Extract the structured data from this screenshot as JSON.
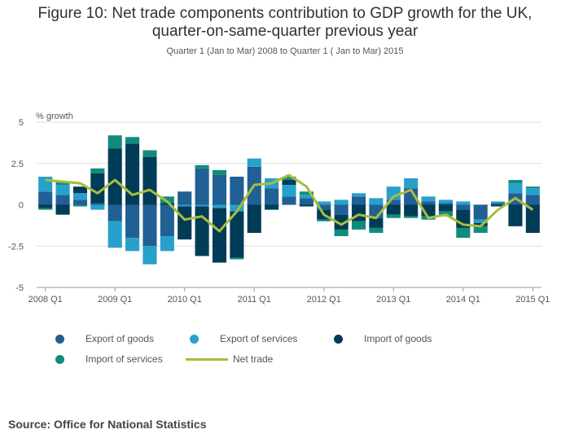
{
  "title_line1": "Figure 10: Net trade components contribution to GDP growth for the UK,",
  "title_line2": "quarter-on-same-quarter previous year",
  "subtitle": "Quarter 1 (Jan to Mar) 2008 to Quarter 1 ( Jan to Mar) 2015",
  "source": "Source: Office for National Statistics",
  "legend": [
    {
      "label": "Export of goods",
      "color": "#206095",
      "shape": "dot"
    },
    {
      "label": "Export of services",
      "color": "#27a0cc",
      "shape": "dot"
    },
    {
      "label": "Import of goods",
      "color": "#003c57",
      "shape": "dot"
    },
    {
      "label": "Import of services",
      "color": "#118c7b",
      "shape": "dot"
    },
    {
      "label": "Net trade",
      "color": "#a8bd3a",
      "shape": "line"
    }
  ],
  "chart_data": {
    "type": "bar",
    "stacked": true,
    "ylabel": "% growth",
    "ylim": [
      -5,
      5
    ],
    "yticks": [
      5,
      2.5,
      0,
      -2.5,
      -5
    ],
    "ytick_labels": [
      "5",
      "2.5",
      "0",
      "-2.5",
      "-5"
    ],
    "xtick_labels": [
      "2008 Q1",
      "2009 Q1",
      "2010 Q1",
      "2011 Q1",
      "2012 Q1",
      "2013 Q1",
      "2014 Q1",
      "2015 Q1"
    ],
    "categories": [
      "2008 Q1",
      "2008 Q2",
      "2008 Q3",
      "2008 Q4",
      "2009 Q1",
      "2009 Q2",
      "2009 Q3",
      "2009 Q4",
      "2010 Q1",
      "2010 Q2",
      "2010 Q3",
      "2010 Q4",
      "2011 Q1",
      "2011 Q2",
      "2011 Q3",
      "2011 Q4",
      "2012 Q1",
      "2012 Q2",
      "2012 Q3",
      "2012 Q4",
      "2013 Q1",
      "2013 Q2",
      "2013 Q3",
      "2013 Q4",
      "2014 Q1",
      "2014 Q2",
      "2014 Q3",
      "2014 Q4",
      "2015 Q1"
    ],
    "grid": true,
    "series": [
      {
        "name": "Export of goods",
        "color": "#206095",
        "values": [
          0.8,
          0.6,
          0.3,
          0.1,
          -1.0,
          -2.0,
          -2.5,
          -1.9,
          0.8,
          2.2,
          1.8,
          1.7,
          2.3,
          1.0,
          0.5,
          0.4,
          -0.3,
          -0.6,
          0.5,
          -0.8,
          0.3,
          1.0,
          0.2,
          0.1,
          -0.3,
          -0.9,
          0.1,
          0.7,
          0.6
        ]
      },
      {
        "name": "Export of services",
        "color": "#27a0cc",
        "values": [
          0.9,
          0.6,
          0.4,
          -0.3,
          -1.6,
          -0.8,
          -1.1,
          -0.9,
          -0.1,
          -0.1,
          -0.2,
          -0.4,
          0.5,
          0.6,
          0.7,
          0.2,
          0.2,
          0.3,
          0.2,
          0.4,
          0.8,
          0.6,
          0.3,
          0.2,
          0.2,
          -0.2,
          0.1,
          0.6,
          0.4
        ]
      },
      {
        "name": "Import of goods",
        "color": "#003c57",
        "values": [
          -0.2,
          -0.6,
          0.4,
          1.8,
          3.4,
          3.7,
          2.9,
          0.1,
          -2.0,
          -3.0,
          -3.3,
          -2.8,
          -1.7,
          -0.3,
          0.3,
          -0.1,
          -0.6,
          -0.9,
          -1.0,
          -0.6,
          -0.6,
          -0.7,
          -0.7,
          -0.4,
          -1.1,
          -0.2,
          -0.1,
          -1.3,
          -1.7
        ]
      },
      {
        "name": "Import of services",
        "color": "#118c7b",
        "values": [
          -0.1,
          0.2,
          -0.1,
          0.3,
          0.8,
          0.4,
          0.4,
          0.4,
          0.0,
          0.2,
          0.3,
          -0.1,
          0.0,
          0.0,
          0.2,
          0.2,
          -0.1,
          -0.4,
          -0.5,
          -0.3,
          -0.2,
          -0.1,
          -0.2,
          -0.3,
          -0.6,
          -0.4,
          0.0,
          0.2,
          0.1
        ]
      },
      {
        "name": "Net trade",
        "color": "#a8bd3a",
        "type": "line",
        "values": [
          1.5,
          1.4,
          1.3,
          0.7,
          1.5,
          0.6,
          0.9,
          0.2,
          -0.9,
          -0.7,
          -1.6,
          -0.4,
          1.2,
          1.3,
          1.8,
          1.1,
          -0.6,
          -1.2,
          -0.6,
          -0.8,
          0.5,
          0.9,
          -0.8,
          -0.6,
          -1.2,
          -1.3,
          -0.3,
          0.4,
          -0.3
        ]
      }
    ]
  }
}
